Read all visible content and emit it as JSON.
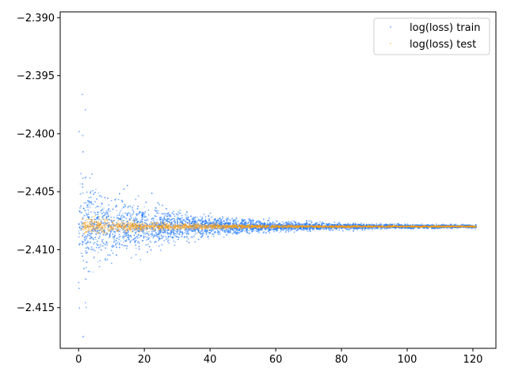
{
  "chart_data": {
    "type": "scatter",
    "title": "",
    "xlabel": "",
    "ylabel": "",
    "xlim": [
      -5.6,
      127
    ],
    "ylim": [
      -2.4185,
      -2.3895
    ],
    "x_ticks": [
      0,
      20,
      40,
      60,
      80,
      100,
      120
    ],
    "x_tick_labels": [
      "0",
      "20",
      "40",
      "60",
      "80",
      "100",
      "120"
    ],
    "y_ticks": [
      -2.39,
      -2.395,
      -2.4,
      -2.405,
      -2.41,
      -2.415
    ],
    "y_tick_labels": [
      "−2.390",
      "−2.395",
      "−2.400",
      "−2.405",
      "−2.410",
      "−2.415"
    ],
    "grid": false,
    "legend_position": "top-right",
    "series": [
      {
        "name": "log(loss) train",
        "color": "#1f77ff",
        "x_range": [
          0,
          121
        ],
        "center": -2.408,
        "spread_start": 0.0035,
        "spread_end": 0.0001,
        "point_count": 9000
      },
      {
        "name": "log(loss) test",
        "color": "#ff9f0e",
        "x_range": [
          1,
          121
        ],
        "center": -2.408,
        "spread_start": 0.0007,
        "spread_end": 5e-05,
        "point_count": 2500
      }
    ]
  }
}
